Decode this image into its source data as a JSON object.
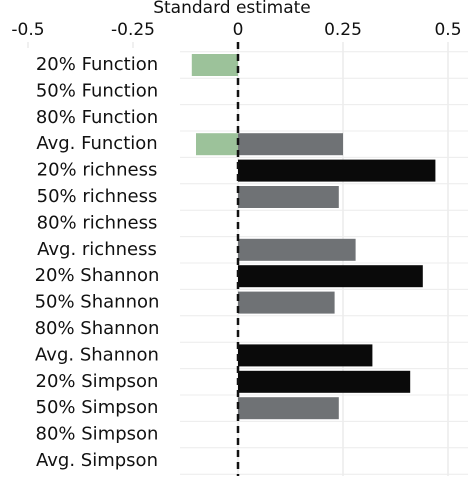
{
  "chart_data": {
    "type": "hbar",
    "xlabel": "Standard estimate",
    "categories": [
      "20% Function",
      "50% Function",
      "80% Function",
      "Avg. Function",
      "20% richness",
      "50% richness",
      "80% richness",
      "Avg. richness",
      "20% Shannon",
      "50% Shannon",
      "80% Shannon",
      "Avg. Shannon",
      "20% Simpson",
      "50% Simpson",
      "80% Simpson",
      "Avg. Simpson"
    ],
    "series": [
      {
        "color": "#9cc29a",
        "values": [
          -0.11,
          null,
          null,
          -0.1,
          null,
          null,
          null,
          null,
          null,
          null,
          null,
          null,
          null,
          null,
          null,
          null
        ]
      },
      {
        "color": "#6f7275",
        "values": [
          null,
          null,
          null,
          0.25,
          null,
          0.24,
          null,
          0.28,
          null,
          0.23,
          null,
          null,
          null,
          0.24,
          null,
          null
        ]
      },
      {
        "color": "#0a0a0a",
        "values": [
          null,
          null,
          null,
          null,
          0.47,
          null,
          null,
          null,
          0.44,
          null,
          null,
          0.32,
          0.41,
          null,
          null,
          null
        ]
      }
    ],
    "xlim": [
      -0.5,
      0.5
    ],
    "xticks": [
      -0.5,
      -0.25,
      0,
      0.25,
      0.5
    ],
    "grid": true
  }
}
